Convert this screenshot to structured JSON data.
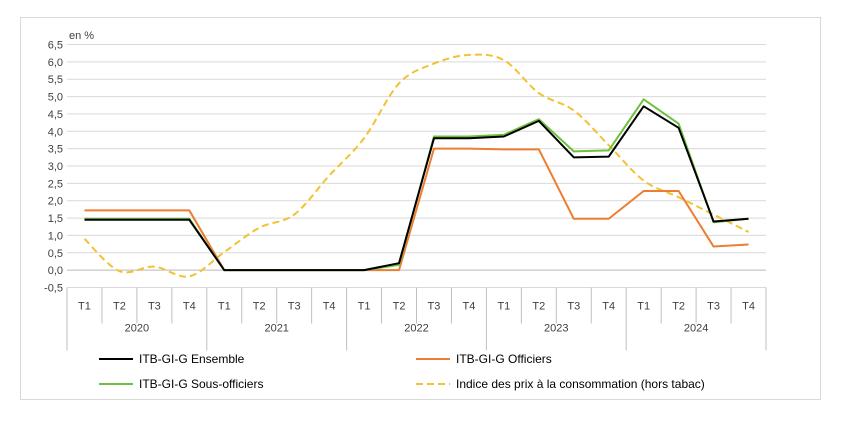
{
  "chart_data": {
    "type": "line",
    "unit_label": "en %",
    "ylim": [
      -0.5,
      6.5
    ],
    "y_ticks": [
      "-0,5",
      "0,0",
      "0,5",
      "1,0",
      "1,5",
      "2,0",
      "2,5",
      "3,0",
      "3,5",
      "4,0",
      "4,5",
      "5,0",
      "5,5",
      "6,0",
      "6,5"
    ],
    "quarters": [
      "T1",
      "T2",
      "T3",
      "T4",
      "T1",
      "T2",
      "T3",
      "T4",
      "T1",
      "T2",
      "T3",
      "T4",
      "T1",
      "T2",
      "T3",
      "T4",
      "T1",
      "T2",
      "T3",
      "T4"
    ],
    "years": [
      "2020",
      "2021",
      "2022",
      "2023",
      "2024"
    ],
    "grid": "horizontal",
    "legend_position": "bottom",
    "series": [
      {
        "name": "ITB-GI-G Ensemble",
        "color": "#000000",
        "dash": "solid",
        "values": [
          1.45,
          1.45,
          1.45,
          1.45,
          0.0,
          0.0,
          0.0,
          0.0,
          0.0,
          0.2,
          3.8,
          3.8,
          3.85,
          4.3,
          3.25,
          3.27,
          4.72,
          4.1,
          1.4,
          1.48
        ]
      },
      {
        "name": "ITB-GI-G Officiers",
        "color": "#ED7D31",
        "dash": "solid",
        "values": [
          1.72,
          1.72,
          1.72,
          1.72,
          0.0,
          0.0,
          0.0,
          0.0,
          0.0,
          0.0,
          3.5,
          3.5,
          3.48,
          3.48,
          1.48,
          1.48,
          2.28,
          2.28,
          0.68,
          0.74
        ]
      },
      {
        "name": "ITB-GI-G Sous-officiers",
        "color": "#70C040",
        "dash": "solid",
        "values": [
          1.48,
          1.48,
          1.48,
          1.48,
          0.0,
          0.0,
          0.0,
          0.0,
          0.0,
          0.15,
          3.85,
          3.85,
          3.9,
          4.35,
          3.42,
          3.45,
          4.92,
          4.22,
          1.38,
          1.48
        ]
      },
      {
        "name": "Indice des prix à la consommation (hors tabac)",
        "color": "#F2C230",
        "dash": "dashed",
        "values": [
          0.9,
          -0.03,
          0.1,
          -0.18,
          0.52,
          1.22,
          1.6,
          2.72,
          3.8,
          5.38,
          5.95,
          6.2,
          6.05,
          5.1,
          4.6,
          3.6,
          2.58,
          2.1,
          1.6,
          1.1
        ]
      }
    ]
  }
}
